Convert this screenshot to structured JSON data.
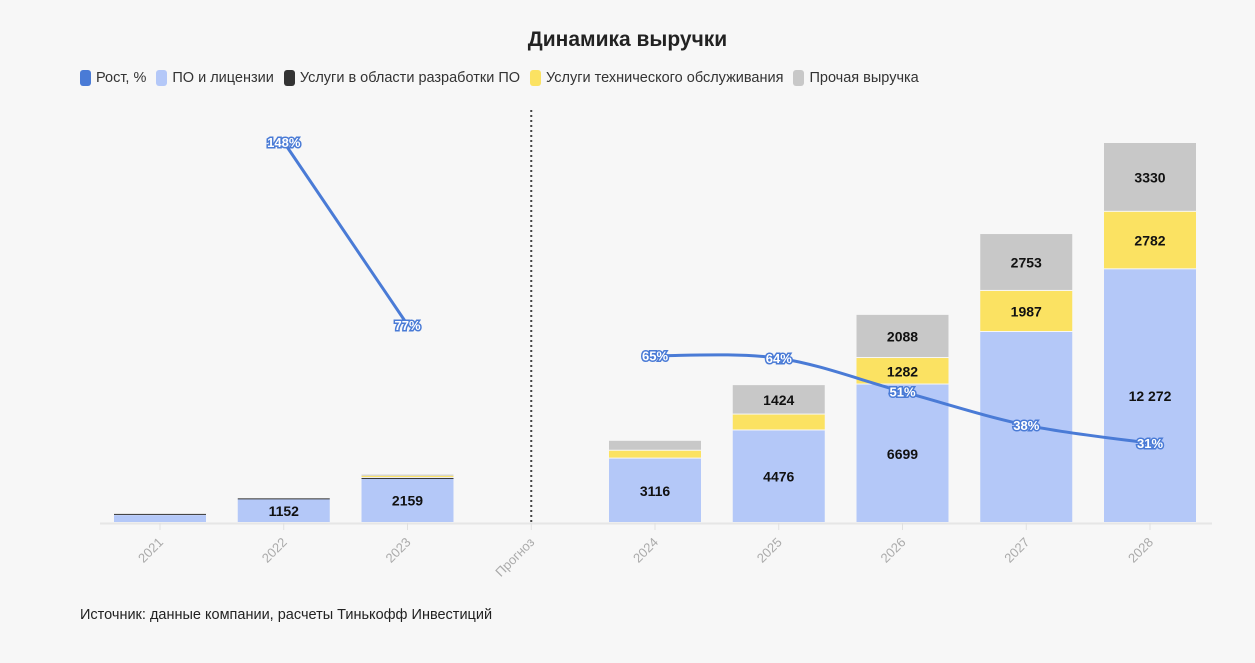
{
  "chart_data": {
    "type": "bar",
    "title": "Динамика выручки",
    "categories": [
      "2021",
      "2022",
      "2023",
      "Прогноз",
      "2024",
      "2025",
      "2026",
      "2027",
      "2028"
    ],
    "forecast_divider": "Прогноз",
    "series": [
      {
        "name": "ПО и лицензии",
        "color": "#b4c8f8",
        "values": [
          380,
          1152,
          2159,
          null,
          3116,
          4476,
          6699,
          9240,
          12272
        ],
        "labels": [
          null,
          "1152",
          "2159",
          null,
          "3116",
          "4476",
          "6699",
          null,
          "12 272"
        ]
      },
      {
        "name": "Услуги в области разработки ПО",
        "color": "#333333",
        "values": [
          60,
          40,
          20,
          null,
          0,
          0,
          0,
          0,
          0
        ],
        "labels": [
          null,
          null,
          null,
          null,
          null,
          null,
          null,
          null,
          null
        ]
      },
      {
        "name": "Услуги технического обслуживания",
        "color": "#fbe262",
        "values": [
          0,
          0,
          100,
          null,
          380,
          770,
          1282,
          1987,
          2782
        ],
        "labels": [
          null,
          null,
          null,
          null,
          null,
          null,
          "1282",
          "1987",
          "2782"
        ]
      },
      {
        "name": "Прочая выручка",
        "color": "#c8c8c8",
        "values": [
          0,
          0,
          60,
          null,
          480,
          1424,
          2088,
          2753,
          3330
        ],
        "labels": [
          null,
          null,
          null,
          null,
          null,
          "1424",
          "2088",
          "2753",
          "3330"
        ]
      }
    ],
    "growth": {
      "name": "Рост, %",
      "color": "#4a7bd6",
      "values": [
        null,
        148,
        77,
        null,
        65,
        64,
        51,
        38,
        31
      ],
      "labels": [
        null,
        "148%",
        "77%",
        null,
        "65%",
        "64%",
        "51%",
        "38%",
        "31%"
      ]
    },
    "legend_position": "top-left",
    "grid": false
  },
  "legend": [
    "Рост, %",
    "ПО и лицензии",
    "Услуги в области разработки ПО",
    "Услуги технического обслуживания",
    "Прочая выручка"
  ],
  "legend_colors": [
    "#4a7bd6",
    "#b4c8f8",
    "#333333",
    "#fbe262",
    "#c8c8c8"
  ],
  "source": "Источник: данные компании, расчеты Тинькофф Инвестиций"
}
